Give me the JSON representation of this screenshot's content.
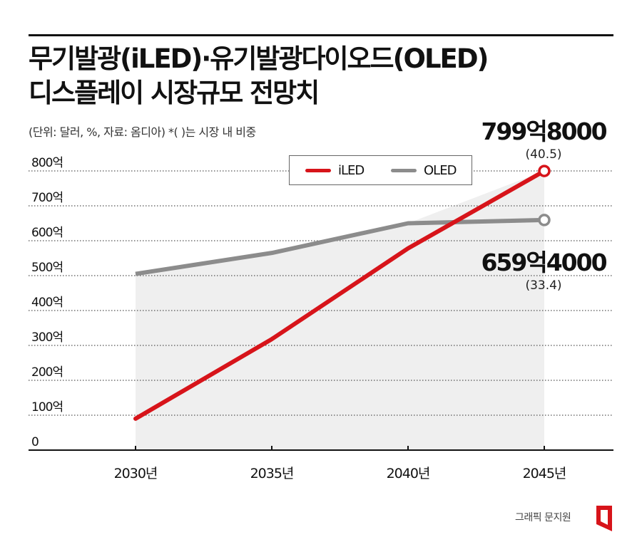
{
  "title_line1": "무기발광(iLED)·유기발광다이오드(OLED)",
  "title_line2": "디스플레이 시장규모 전망치",
  "subtitle": "(단위: 달러, %, 자료: 옴디아)   *( )는 시장 내 비중",
  "credit": "그래픽 문지원",
  "colors": {
    "iled": "#d7141a",
    "oled": "#8c8c8c",
    "area": "#efefef",
    "logo": "#d7141a"
  },
  "chart_data": {
    "type": "line",
    "title": "무기발광(iLED)·유기발광다이오드(OLED) 디스플레이 시장규모 전망치",
    "categories": [
      "2030년",
      "2035년",
      "2040년",
      "2045년"
    ],
    "x_tick_labels": [
      "2030년",
      "2035년",
      "2040년",
      "2045년"
    ],
    "y_tick_labels": [
      "0",
      "100억",
      "200억",
      "300억",
      "400억",
      "500억",
      "600억",
      "700억",
      "800억"
    ],
    "y_ticks": [
      0,
      100,
      200,
      300,
      400,
      500,
      600,
      700,
      800
    ],
    "ylim": [
      0,
      800
    ],
    "series": [
      {
        "name": "iLED",
        "values": [
          90,
          318,
          578,
          799.8
        ]
      },
      {
        "name": "OLED",
        "values": [
          505,
          565,
          650,
          659.4
        ]
      }
    ],
    "annotations": [
      {
        "series": "iLED",
        "text": "799억8000",
        "share": "(40.5)"
      },
      {
        "series": "OLED",
        "text": "659억4000",
        "share": "(33.4)"
      }
    ],
    "legend": [
      "iLED",
      "OLED"
    ],
    "legend_position": "top-center",
    "grid": "dotted horizontal"
  }
}
